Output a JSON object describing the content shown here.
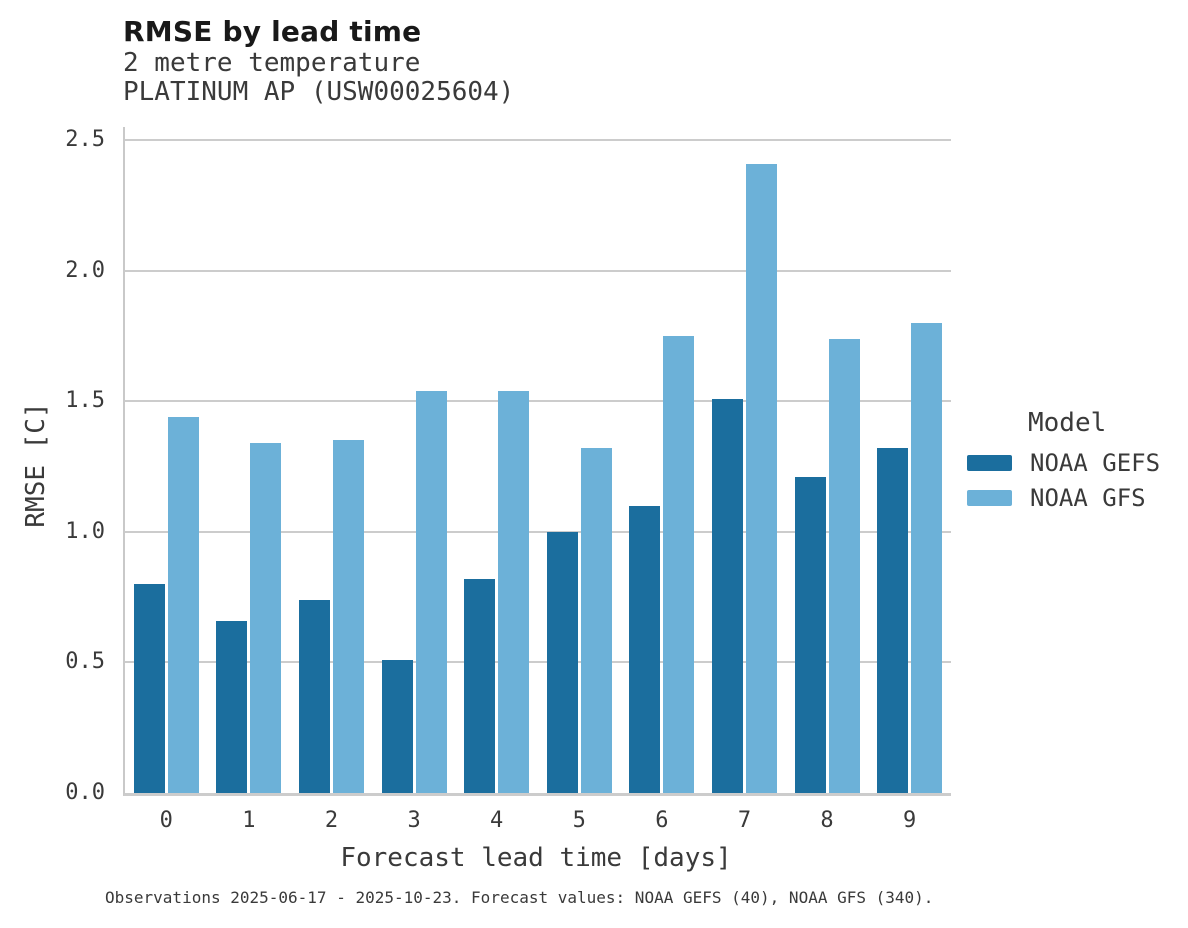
{
  "header": {
    "title": "RMSE by lead time",
    "subtitle_line1": "2 metre temperature",
    "subtitle_line2": "PLATINUM AP (USW00025604)"
  },
  "chart_data": {
    "type": "bar",
    "title": "RMSE by lead time",
    "subtitle": [
      "2 metre temperature",
      "PLATINUM AP (USW00025604)"
    ],
    "categories": [
      0,
      1,
      2,
      3,
      4,
      5,
      6,
      7,
      8,
      9
    ],
    "series": [
      {
        "name": "NOAA GEFS",
        "color": "#1b6e9e",
        "values": [
          0.8,
          0.66,
          0.74,
          0.51,
          0.82,
          1.0,
          1.1,
          1.51,
          1.21,
          1.32
        ]
      },
      {
        "name": "NOAA GFS",
        "color": "#6cb1d8",
        "values": [
          1.44,
          1.34,
          1.35,
          1.54,
          1.54,
          1.32,
          1.75,
          2.41,
          1.74,
          1.8
        ]
      }
    ],
    "xlabel": "Forecast lead time [days]",
    "ylabel": "RMSE [C]",
    "ylim": [
      0,
      2.5
    ],
    "yticks": [
      0.0,
      0.5,
      1.0,
      1.5,
      2.0,
      2.5
    ],
    "grid": true,
    "legend_title": "Model",
    "legend_position": "right"
  },
  "legend": {
    "title": "Model",
    "items": [
      {
        "label": "NOAA GEFS",
        "color": "#1b6e9e"
      },
      {
        "label": "NOAA GFS",
        "color": "#6cb1d8"
      }
    ]
  },
  "footer": {
    "caption": "Observations 2025-06-17 - 2025-10-23. Forecast values: NOAA GEFS (40), NOAA GFS (340)."
  },
  "colors": {
    "gefs_bar": "#1b6e9e",
    "gfs_bar": "#6cb1d8",
    "gridline": "#cccccc",
    "spine": "#c9c9c9",
    "title_text": "#191919",
    "body_text": "#3a3a3a"
  }
}
